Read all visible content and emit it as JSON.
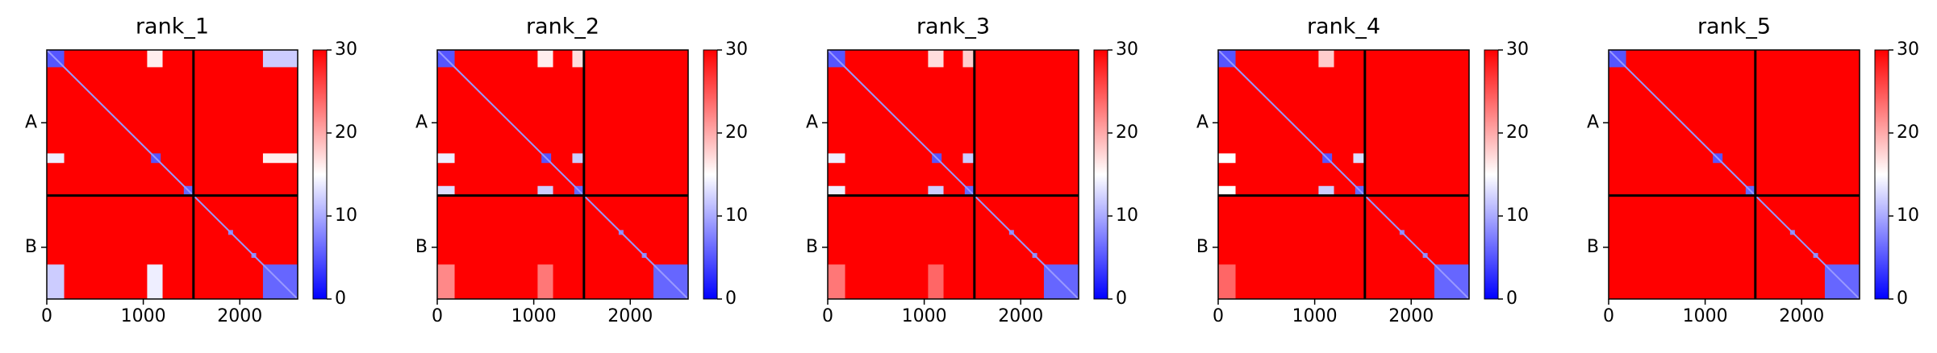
{
  "chart_data": [
    {
      "type": "heatmap",
      "title": "rank_1",
      "colormap": "bwr",
      "xlim": [
        0,
        2600
      ],
      "ylim": [
        2600,
        0
      ],
      "xticks": [
        0,
        1000,
        2000
      ],
      "yticks": [
        {
          "value": 760,
          "label": "A"
        },
        {
          "value": 2060,
          "label": "B"
        }
      ],
      "background": 30,
      "diagonal": 9,
      "boundaries": [
        1520
      ],
      "blocks": [
        {
          "x": [
            0,
            180
          ],
          "y": [
            0,
            180
          ],
          "value": 5
        },
        {
          "x": [
            1080,
            1180
          ],
          "y": [
            1080,
            1180
          ],
          "value": 5
        },
        {
          "x": [
            1420,
            1520
          ],
          "y": [
            1420,
            1520
          ],
          "value": 6
        },
        {
          "x": [
            1880,
            1930
          ],
          "y": [
            1880,
            1930
          ],
          "value": 8
        },
        {
          "x": [
            2120,
            2170
          ],
          "y": [
            2120,
            2170
          ],
          "value": 8
        },
        {
          "x": [
            2240,
            2600
          ],
          "y": [
            2240,
            2600
          ],
          "value": 6
        },
        {
          "x": [
            1040,
            1200
          ],
          "y": [
            0,
            180
          ],
          "value": 16
        },
        {
          "x": [
            2240,
            2600
          ],
          "y": [
            0,
            180
          ],
          "value": 12
        },
        {
          "x": [
            0,
            180
          ],
          "y": [
            1080,
            1180
          ],
          "value": 14
        },
        {
          "x": [
            2240,
            2600
          ],
          "y": [
            1080,
            1180
          ],
          "value": 16
        },
        {
          "x": [
            0,
            180
          ],
          "y": [
            2240,
            2600
          ],
          "value": 12
        },
        {
          "x": [
            1040,
            1200
          ],
          "y": [
            2240,
            2600
          ],
          "value": 14
        }
      ],
      "colorbar_lim": [
        0,
        30
      ],
      "colorbar_ticks": [
        0,
        10,
        20,
        30
      ]
    },
    {
      "type": "heatmap",
      "title": "rank_2",
      "colormap": "bwr",
      "xlim": [
        0,
        2600
      ],
      "ylim": [
        2600,
        0
      ],
      "xticks": [
        0,
        1000,
        2000
      ],
      "yticks": [
        {
          "value": 760,
          "label": "A"
        },
        {
          "value": 2060,
          "label": "B"
        }
      ],
      "background": 30,
      "diagonal": 9,
      "boundaries": [
        1520
      ],
      "blocks": [
        {
          "x": [
            0,
            180
          ],
          "y": [
            0,
            180
          ],
          "value": 5
        },
        {
          "x": [
            1080,
            1180
          ],
          "y": [
            1080,
            1180
          ],
          "value": 5
        },
        {
          "x": [
            1420,
            1520
          ],
          "y": [
            1420,
            1520
          ],
          "value": 6
        },
        {
          "x": [
            1880,
            1930
          ],
          "y": [
            1880,
            1930
          ],
          "value": 8
        },
        {
          "x": [
            2120,
            2170
          ],
          "y": [
            2120,
            2170
          ],
          "value": 8
        },
        {
          "x": [
            2240,
            2600
          ],
          "y": [
            2240,
            2600
          ],
          "value": 6
        },
        {
          "x": [
            1040,
            1200
          ],
          "y": [
            0,
            180
          ],
          "value": 16
        },
        {
          "x": [
            1400,
            1520
          ],
          "y": [
            0,
            180
          ],
          "value": 17
        },
        {
          "x": [
            0,
            180
          ],
          "y": [
            1080,
            1180
          ],
          "value": 14
        },
        {
          "x": [
            1400,
            1520
          ],
          "y": [
            1080,
            1180
          ],
          "value": 12
        },
        {
          "x": [
            0,
            180
          ],
          "y": [
            1420,
            1520
          ],
          "value": 13
        },
        {
          "x": [
            1040,
            1200
          ],
          "y": [
            1420,
            1520
          ],
          "value": 12
        },
        {
          "x": [
            0,
            180
          ],
          "y": [
            2240,
            2600
          ],
          "value": 22
        },
        {
          "x": [
            1040,
            1200
          ],
          "y": [
            2240,
            2600
          ],
          "value": 23
        }
      ],
      "colorbar_lim": [
        0,
        30
      ],
      "colorbar_ticks": [
        0,
        10,
        20,
        30
      ]
    },
    {
      "type": "heatmap",
      "title": "rank_3",
      "colormap": "bwr",
      "xlim": [
        0,
        2600
      ],
      "ylim": [
        2600,
        0
      ],
      "xticks": [
        0,
        1000,
        2000
      ],
      "yticks": [
        {
          "value": 760,
          "label": "A"
        },
        {
          "value": 2060,
          "label": "B"
        }
      ],
      "background": 30,
      "diagonal": 9,
      "boundaries": [
        1520
      ],
      "blocks": [
        {
          "x": [
            0,
            180
          ],
          "y": [
            0,
            180
          ],
          "value": 5
        },
        {
          "x": [
            1080,
            1180
          ],
          "y": [
            1080,
            1180
          ],
          "value": 5
        },
        {
          "x": [
            1420,
            1520
          ],
          "y": [
            1420,
            1520
          ],
          "value": 6
        },
        {
          "x": [
            1880,
            1930
          ],
          "y": [
            1880,
            1930
          ],
          "value": 8
        },
        {
          "x": [
            2120,
            2170
          ],
          "y": [
            2120,
            2170
          ],
          "value": 8
        },
        {
          "x": [
            2240,
            2600
          ],
          "y": [
            2240,
            2600
          ],
          "value": 6
        },
        {
          "x": [
            1040,
            1200
          ],
          "y": [
            0,
            180
          ],
          "value": 17
        },
        {
          "x": [
            1400,
            1520
          ],
          "y": [
            0,
            180
          ],
          "value": 18
        },
        {
          "x": [
            0,
            180
          ],
          "y": [
            1080,
            1180
          ],
          "value": 14
        },
        {
          "x": [
            1400,
            1520
          ],
          "y": [
            1080,
            1180
          ],
          "value": 12
        },
        {
          "x": [
            0,
            180
          ],
          "y": [
            1420,
            1520
          ],
          "value": 14
        },
        {
          "x": [
            1040,
            1200
          ],
          "y": [
            1420,
            1520
          ],
          "value": 12
        },
        {
          "x": [
            0,
            180
          ],
          "y": [
            2240,
            2600
          ],
          "value": 23
        },
        {
          "x": [
            1040,
            1200
          ],
          "y": [
            2240,
            2600
          ],
          "value": 24
        }
      ],
      "colorbar_lim": [
        0,
        30
      ],
      "colorbar_ticks": [
        0,
        10,
        20,
        30
      ]
    },
    {
      "type": "heatmap",
      "title": "rank_4",
      "colormap": "bwr",
      "xlim": [
        0,
        2600
      ],
      "ylim": [
        2600,
        0
      ],
      "xticks": [
        0,
        1000,
        2000
      ],
      "yticks": [
        {
          "value": 760,
          "label": "A"
        },
        {
          "value": 2060,
          "label": "B"
        }
      ],
      "background": 30,
      "diagonal": 9,
      "boundaries": [
        1520
      ],
      "blocks": [
        {
          "x": [
            0,
            180
          ],
          "y": [
            0,
            180
          ],
          "value": 5
        },
        {
          "x": [
            1080,
            1180
          ],
          "y": [
            1080,
            1180
          ],
          "value": 5
        },
        {
          "x": [
            1420,
            1520
          ],
          "y": [
            1420,
            1520
          ],
          "value": 6
        },
        {
          "x": [
            1880,
            1930
          ],
          "y": [
            1880,
            1930
          ],
          "value": 8
        },
        {
          "x": [
            2120,
            2170
          ],
          "y": [
            2120,
            2170
          ],
          "value": 8
        },
        {
          "x": [
            2240,
            2600
          ],
          "y": [
            2240,
            2600
          ],
          "value": 6
        },
        {
          "x": [
            1040,
            1200
          ],
          "y": [
            0,
            180
          ],
          "value": 18
        },
        {
          "x": [
            0,
            180
          ],
          "y": [
            1080,
            1180
          ],
          "value": 15
        },
        {
          "x": [
            1400,
            1520
          ],
          "y": [
            1080,
            1180
          ],
          "value": 13
        },
        {
          "x": [
            0,
            180
          ],
          "y": [
            1420,
            1520
          ],
          "value": 15
        },
        {
          "x": [
            1040,
            1200
          ],
          "y": [
            1420,
            1520
          ],
          "value": 12
        },
        {
          "x": [
            0,
            180
          ],
          "y": [
            2240,
            2600
          ],
          "value": 24
        }
      ],
      "colorbar_lim": [
        0,
        30
      ],
      "colorbar_ticks": [
        0,
        10,
        20,
        30
      ]
    },
    {
      "type": "heatmap",
      "title": "rank_5",
      "colormap": "bwr",
      "xlim": [
        0,
        2600
      ],
      "ylim": [
        2600,
        0
      ],
      "xticks": [
        0,
        1000,
        2000
      ],
      "yticks": [
        {
          "value": 760,
          "label": "A"
        },
        {
          "value": 2060,
          "label": "B"
        }
      ],
      "background": 30,
      "diagonal": 9,
      "boundaries": [
        1520
      ],
      "blocks": [
        {
          "x": [
            0,
            180
          ],
          "y": [
            0,
            180
          ],
          "value": 5
        },
        {
          "x": [
            1080,
            1180
          ],
          "y": [
            1080,
            1180
          ],
          "value": 5
        },
        {
          "x": [
            1420,
            1520
          ],
          "y": [
            1420,
            1520
          ],
          "value": 6
        },
        {
          "x": [
            1880,
            1930
          ],
          "y": [
            1880,
            1930
          ],
          "value": 8
        },
        {
          "x": [
            2120,
            2170
          ],
          "y": [
            2120,
            2170
          ],
          "value": 8
        },
        {
          "x": [
            2240,
            2600
          ],
          "y": [
            2240,
            2600
          ],
          "value": 6
        }
      ],
      "colorbar_lim": [
        0,
        30
      ],
      "colorbar_ticks": [
        0,
        10,
        20,
        30
      ]
    }
  ]
}
